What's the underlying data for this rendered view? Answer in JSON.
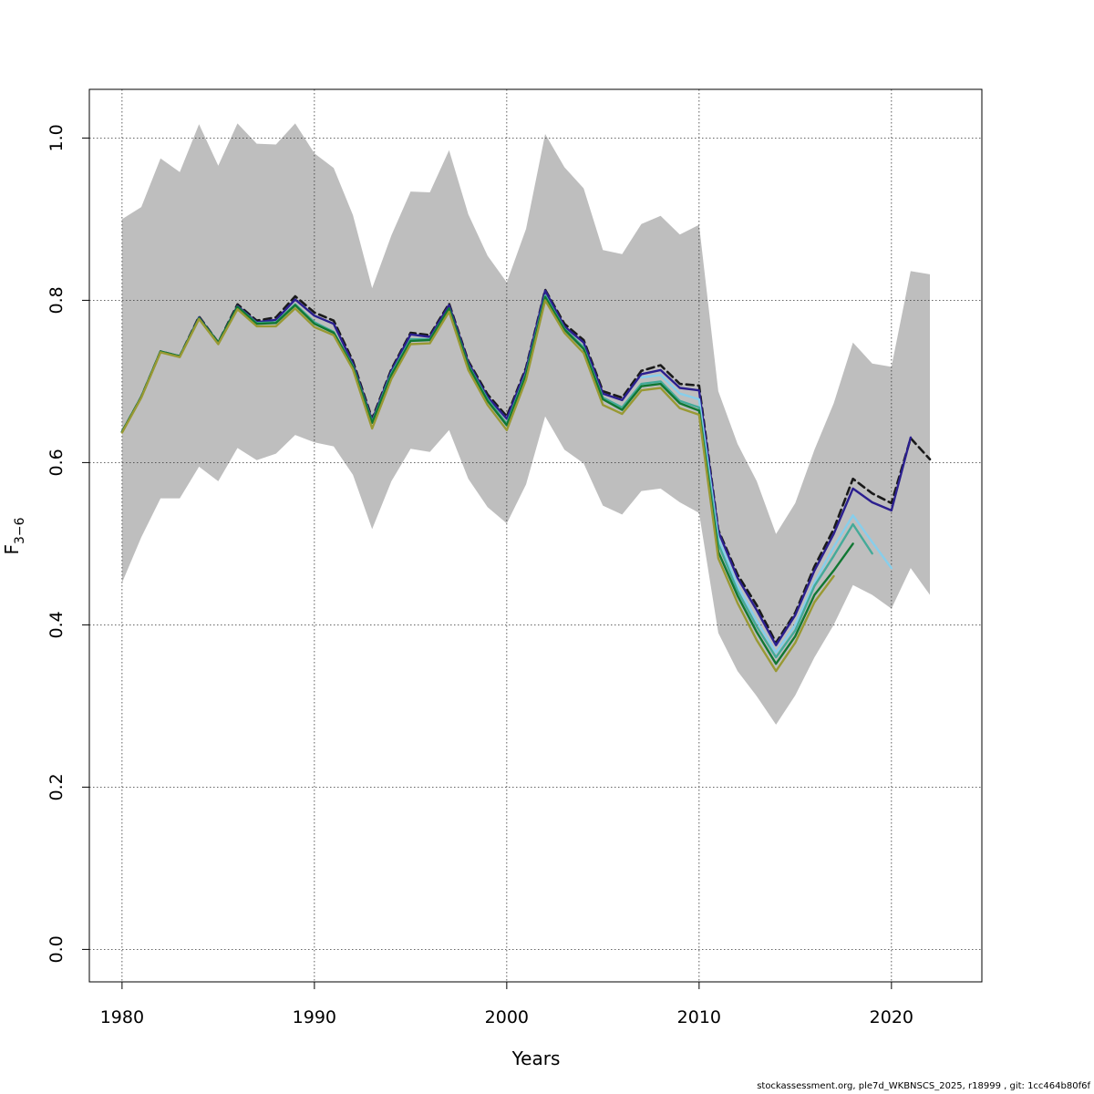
{
  "chart_data": {
    "type": "line",
    "title": "",
    "xlabel": "Years",
    "ylabel_main": "F",
    "ylabel_sub": "3−6",
    "xlim": [
      1978.3,
      2024.7
    ],
    "ylim": [
      -0.04,
      1.06
    ],
    "xticks": [
      1980,
      1990,
      2000,
      2010,
      2020
    ],
    "xtick_labels": [
      "1980",
      "1990",
      "2000",
      "2010",
      "2020"
    ],
    "yticks": [
      0.0,
      0.2,
      0.4,
      0.6,
      0.8,
      1.0
    ],
    "ytick_labels": [
      "0.0",
      "0.2",
      "0.4",
      "0.6",
      "0.8",
      "1.0"
    ],
    "grid": true,
    "band_color": "#bebebe",
    "confidence_band": {
      "x": [
        1980,
        1981,
        1982,
        1983,
        1984,
        1985,
        1986,
        1987,
        1988,
        1989,
        1990,
        1991,
        1992,
        1993,
        1994,
        1995,
        1996,
        1997,
        1998,
        1999,
        2000,
        2001,
        2002,
        2003,
        2004,
        2005,
        2006,
        2007,
        2008,
        2009,
        2010,
        2011,
        2012,
        2013,
        2014,
        2015,
        2016,
        2017,
        2018,
        2019,
        2020,
        2021,
        2022
      ],
      "upper": [
        0.9,
        0.915,
        0.975,
        0.958,
        1.017,
        0.966,
        1.018,
        0.993,
        0.992,
        1.018,
        0.981,
        0.963,
        0.905,
        0.815,
        0.88,
        0.934,
        0.933,
        0.985,
        0.906,
        0.855,
        0.822,
        0.888,
        1.005,
        0.964,
        0.938,
        0.862,
        0.857,
        0.894,
        0.904,
        0.881,
        0.893,
        0.688,
        0.623,
        0.577,
        0.512,
        0.55,
        0.616,
        0.673,
        0.748,
        0.722,
        0.718,
        0.836,
        0.832
      ],
      "lower": [
        0.452,
        0.508,
        0.556,
        0.556,
        0.595,
        0.577,
        0.618,
        0.603,
        0.611,
        0.634,
        0.625,
        0.62,
        0.585,
        0.518,
        0.577,
        0.617,
        0.613,
        0.64,
        0.58,
        0.545,
        0.525,
        0.573,
        0.657,
        0.616,
        0.599,
        0.547,
        0.536,
        0.565,
        0.568,
        0.551,
        0.538,
        0.39,
        0.343,
        0.312,
        0.277,
        0.313,
        0.36,
        0.4,
        0.449,
        0.437,
        0.42,
        0.47,
        0.437
      ]
    },
    "series": [
      {
        "color": "#1a1a1a",
        "dashed": true,
        "x": [
          1980,
          1981,
          1982,
          1983,
          1984,
          1985,
          1986,
          1987,
          1988,
          1989,
          1990,
          1991,
          1992,
          1993,
          1994,
          1995,
          1996,
          1997,
          1998,
          1999,
          2000,
          2001,
          2002,
          2003,
          2004,
          2005,
          2006,
          2007,
          2008,
          2009,
          2010,
          2011,
          2012,
          2013,
          2014,
          2015,
          2016,
          2017,
          2018,
          2019,
          2020,
          2021,
          2022
        ],
        "y": [
          0.638,
          0.681,
          0.737,
          0.731,
          0.78,
          0.748,
          0.795,
          0.775,
          0.779,
          0.805,
          0.785,
          0.775,
          0.725,
          0.654,
          0.715,
          0.76,
          0.757,
          0.796,
          0.725,
          0.684,
          0.657,
          0.717,
          0.813,
          0.771,
          0.751,
          0.688,
          0.68,
          0.713,
          0.72,
          0.697,
          0.695,
          0.517,
          0.462,
          0.424,
          0.378,
          0.415,
          0.472,
          0.518,
          0.58,
          0.562,
          0.55,
          0.63,
          0.604
        ]
      },
      {
        "color": "#2b1f8f",
        "dashed": false,
        "x": [
          1980,
          1981,
          1982,
          1983,
          1984,
          1985,
          1986,
          1987,
          1988,
          1989,
          1990,
          1991,
          1992,
          1993,
          1994,
          1995,
          1996,
          1997,
          1998,
          1999,
          2000,
          2001,
          2002,
          2003,
          2004,
          2005,
          2006,
          2007,
          2008,
          2009,
          2010,
          2011,
          2012,
          2013,
          2014,
          2015,
          2016,
          2017,
          2018,
          2019,
          2020,
          2021
        ],
        "y": [
          0.638,
          0.681,
          0.737,
          0.731,
          0.779,
          0.748,
          0.793,
          0.773,
          0.776,
          0.801,
          0.781,
          0.771,
          0.722,
          0.652,
          0.713,
          0.758,
          0.755,
          0.794,
          0.723,
          0.681,
          0.654,
          0.715,
          0.812,
          0.768,
          0.748,
          0.685,
          0.677,
          0.709,
          0.714,
          0.692,
          0.689,
          0.515,
          0.458,
          0.418,
          0.375,
          0.412,
          0.467,
          0.512,
          0.568,
          0.551,
          0.541,
          0.631
        ]
      },
      {
        "color": "#87ceeb",
        "dashed": false,
        "x": [
          2007,
          2008,
          2009,
          2010,
          2011,
          2012,
          2013,
          2014,
          2015,
          2016,
          2017,
          2018,
          2019,
          2020
        ],
        "y": [
          0.705,
          0.708,
          0.685,
          0.678,
          0.507,
          0.448,
          0.405,
          0.366,
          0.4,
          0.452,
          0.496,
          0.535,
          0.502,
          0.47
        ]
      },
      {
        "color": "#44aa99",
        "dashed": false,
        "x": [
          1980,
          1981,
          1982,
          1983,
          1984,
          1985,
          1986,
          1987,
          1988,
          1989,
          1990,
          1991,
          1992,
          1993,
          1994,
          1995,
          1996,
          1997,
          1998,
          1999,
          2000,
          2001,
          2002,
          2003,
          2004,
          2005,
          2006,
          2007,
          2008,
          2009,
          2010,
          2011,
          2012,
          2013,
          2014,
          2015,
          2016,
          2017,
          2018,
          2019
        ],
        "y": [
          0.638,
          0.681,
          0.737,
          0.731,
          0.778,
          0.748,
          0.792,
          0.772,
          0.773,
          0.795,
          0.773,
          0.761,
          0.719,
          0.65,
          0.71,
          0.752,
          0.752,
          0.79,
          0.72,
          0.678,
          0.648,
          0.71,
          0.806,
          0.765,
          0.742,
          0.68,
          0.668,
          0.697,
          0.7,
          0.676,
          0.668,
          0.5,
          0.442,
          0.398,
          0.36,
          0.393,
          0.448,
          0.485,
          0.524,
          0.488
        ]
      },
      {
        "color": "#117733",
        "dashed": false,
        "x": [
          1980,
          1981,
          1982,
          1983,
          1984,
          1985,
          1986,
          1987,
          1988,
          1989,
          1990,
          1991,
          1992,
          1993,
          1994,
          1995,
          1996,
          1997,
          1998,
          1999,
          2000,
          2001,
          2002,
          2003,
          2004,
          2005,
          2006,
          2007,
          2008,
          2009,
          2010,
          2011,
          2012,
          2013,
          2014,
          2015,
          2016,
          2017,
          2018
        ],
        "y": [
          0.638,
          0.681,
          0.737,
          0.731,
          0.778,
          0.748,
          0.792,
          0.771,
          0.772,
          0.794,
          0.771,
          0.76,
          0.718,
          0.649,
          0.708,
          0.75,
          0.751,
          0.79,
          0.719,
          0.676,
          0.646,
          0.708,
          0.804,
          0.764,
          0.74,
          0.678,
          0.665,
          0.694,
          0.697,
          0.673,
          0.664,
          0.49,
          0.436,
          0.391,
          0.352,
          0.386,
          0.437,
          0.467,
          0.5
        ]
      },
      {
        "color": "#999933",
        "dashed": false,
        "x": [
          1980,
          1981,
          1982,
          1983,
          1984,
          1985,
          1986,
          1987,
          1988,
          1989,
          1990,
          1991,
          1992,
          1993,
          1994,
          1995,
          1996,
          1997,
          1998,
          1999,
          2000,
          2001,
          2002,
          2003,
          2004,
          2005,
          2006,
          2007,
          2008,
          2009,
          2010,
          2011,
          2012,
          2013,
          2014,
          2015,
          2016,
          2017
        ],
        "y": [
          0.637,
          0.68,
          0.736,
          0.73,
          0.777,
          0.746,
          0.789,
          0.768,
          0.768,
          0.79,
          0.767,
          0.757,
          0.715,
          0.642,
          0.703,
          0.746,
          0.747,
          0.786,
          0.714,
          0.671,
          0.64,
          0.702,
          0.8,
          0.76,
          0.735,
          0.671,
          0.66,
          0.689,
          0.692,
          0.667,
          0.659,
          0.482,
          0.427,
          0.381,
          0.343,
          0.378,
          0.428,
          0.46
        ]
      }
    ]
  },
  "footer": "stockassessment.org, ple7d_WKBNSCS_2025, r18999 , git: 1cc464b80f6f"
}
